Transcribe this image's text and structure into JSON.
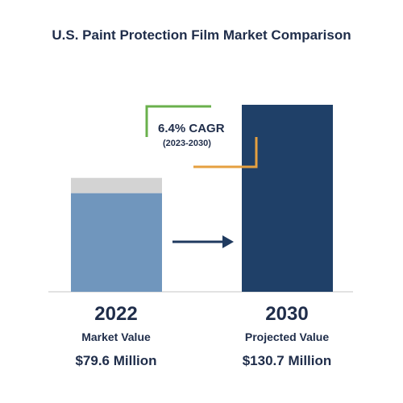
{
  "title": "U.S. Paint Protection Film Market Comparison",
  "cagr": {
    "label": "6.4% CAGR",
    "period": "(2023-2030)"
  },
  "chart_data": {
    "type": "bar",
    "categories": [
      "2022",
      "2030"
    ],
    "values": [
      79.6,
      130.7
    ],
    "unit": "Million",
    "bars": [
      {
        "year": "2022",
        "description": "Market Value",
        "value_label": "$79.6 Million",
        "value": 79.6,
        "color": "#7096bd",
        "cap_color": "#d3d3d3"
      },
      {
        "year": "2030",
        "description": "Projected Value",
        "value_label": "$130.7 Million",
        "value": 130.7,
        "color": "#1f4068"
      }
    ],
    "colors": {
      "accent_green": "#6ab04c",
      "accent_orange": "#e5a040",
      "arrow": "#1f3a5f",
      "baseline": "#d9d9d9"
    }
  }
}
